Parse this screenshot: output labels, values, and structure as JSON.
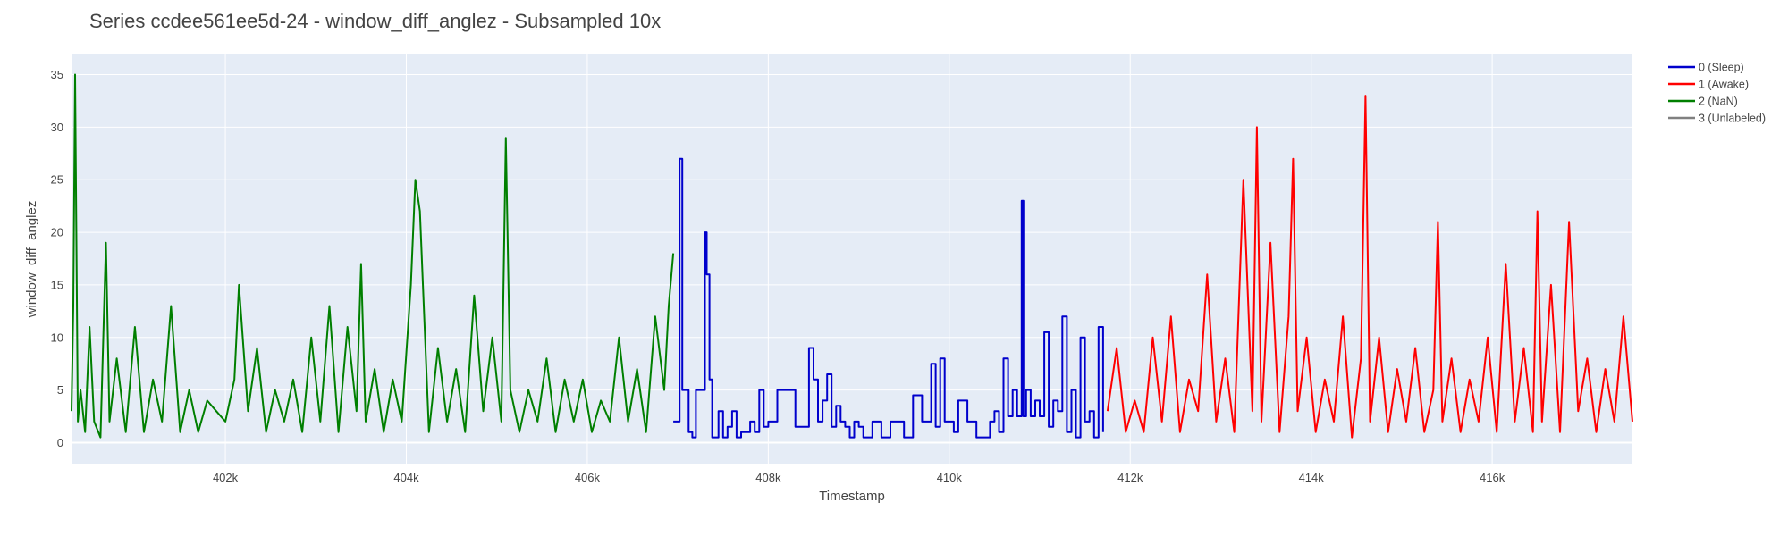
{
  "colors": {
    "plot_bg": "#e5ecf6",
    "grid": "#ffffff",
    "sleep": "#0000cc",
    "awake": "#ff0000",
    "nan": "#007f00",
    "unlabeled": "#808080"
  },
  "chart_data": {
    "type": "line",
    "title": "Series ccdee561ee5d-24 - window_diff_anglez - Subsampled 10x",
    "xlabel": "Timestamp",
    "ylabel": "window_diff_anglez",
    "xlim": [
      400300,
      417550
    ],
    "ylim": [
      -2,
      37
    ],
    "grid": true,
    "legend_position": "top-right",
    "x_ticks": [
      {
        "value": 402000,
        "label": "402k"
      },
      {
        "value": 404000,
        "label": "404k"
      },
      {
        "value": 406000,
        "label": "406k"
      },
      {
        "value": 408000,
        "label": "408k"
      },
      {
        "value": 410000,
        "label": "410k"
      },
      {
        "value": 412000,
        "label": "412k"
      },
      {
        "value": 414000,
        "label": "414k"
      },
      {
        "value": 416000,
        "label": "416k"
      }
    ],
    "y_ticks": [
      {
        "value": 0,
        "label": "0"
      },
      {
        "value": 5,
        "label": "5"
      },
      {
        "value": 10,
        "label": "10"
      },
      {
        "value": 15,
        "label": "15"
      },
      {
        "value": 20,
        "label": "20"
      },
      {
        "value": 25,
        "label": "25"
      },
      {
        "value": 30,
        "label": "30"
      },
      {
        "value": 35,
        "label": "35"
      }
    ],
    "series": [
      {
        "name": "0 (Sleep)",
        "color": "#0000cc",
        "shape": "hv",
        "x": [
          406950,
          407020,
          407050,
          407120,
          407160,
          407200,
          407250,
          407300,
          407320,
          407350,
          407380,
          407420,
          407450,
          407500,
          407550,
          407600,
          407650,
          407700,
          407800,
          407850,
          407900,
          407950,
          408000,
          408100,
          408200,
          408300,
          408450,
          408500,
          408550,
          408600,
          408650,
          408700,
          408750,
          408800,
          408850,
          408900,
          408950,
          409000,
          409050,
          409150,
          409250,
          409350,
          409500,
          409600,
          409700,
          409800,
          409850,
          409900,
          409950,
          410000,
          410050,
          410100,
          410200,
          410300,
          410450,
          410500,
          410550,
          410600,
          410650,
          410700,
          410750,
          410800,
          410820,
          410850,
          410900,
          410950,
          411000,
          411050,
          411100,
          411150,
          411200,
          411250,
          411300,
          411350,
          411400,
          411450,
          411500,
          411550,
          411600,
          411650,
          411700
        ],
        "y": [
          2,
          27,
          5,
          1,
          0.5,
          5,
          5,
          20,
          16,
          6,
          0.5,
          0.5,
          3,
          0.5,
          1.5,
          3,
          0.5,
          1,
          2,
          1,
          5,
          1.5,
          2,
          5,
          5,
          1.5,
          9,
          6,
          2,
          4,
          6.5,
          1.5,
          3.5,
          2,
          1.5,
          0.5,
          2,
          1.5,
          0.5,
          2,
          0.5,
          2,
          0.5,
          4.5,
          2,
          7.5,
          1.5,
          8,
          2,
          2,
          1,
          4,
          2,
          0.5,
          2,
          3,
          1,
          8,
          2.5,
          5,
          2.5,
          23,
          2.5,
          5,
          2.5,
          4,
          2.5,
          10.5,
          1.5,
          4,
          3,
          12,
          1,
          5,
          0.5,
          10,
          2,
          3,
          0.5,
          11,
          1
        ]
      },
      {
        "name": "1 (Awake)",
        "color": "#ff0000",
        "shape": "linear",
        "x": [
          411750,
          411850,
          411950,
          412050,
          412150,
          412250,
          412350,
          412450,
          412550,
          412650,
          412750,
          412850,
          412950,
          413050,
          413150,
          413250,
          413350,
          413400,
          413450,
          413550,
          413650,
          413750,
          413800,
          413850,
          413950,
          414050,
          414150,
          414250,
          414350,
          414450,
          414550,
          414600,
          414650,
          414750,
          414850,
          414950,
          415050,
          415150,
          415250,
          415350,
          415400,
          415450,
          415550,
          415650,
          415750,
          415850,
          415950,
          416050,
          416150,
          416250,
          416350,
          416450,
          416500,
          416550,
          416650,
          416750,
          416850,
          416950,
          417050,
          417150,
          417250,
          417350,
          417450,
          417550
        ],
        "y": [
          3,
          9,
          1,
          4,
          1,
          10,
          2,
          12,
          1,
          6,
          3,
          16,
          2,
          8,
          1,
          25,
          3,
          30,
          2,
          19,
          1,
          12,
          27,
          3,
          10,
          1,
          6,
          2,
          12,
          0.5,
          8,
          33,
          2,
          10,
          1,
          7,
          2,
          9,
          1,
          5,
          21,
          2,
          8,
          1,
          6,
          2,
          10,
          1,
          17,
          2,
          9,
          1,
          22,
          2,
          15,
          1,
          21,
          3,
          8,
          1,
          7,
          2,
          12,
          2
        ]
      },
      {
        "name": "2 (NaN)",
        "color": "#007f00",
        "shape": "linear",
        "x": [
          400300,
          400320,
          400340,
          400370,
          400400,
          400450,
          400500,
          400550,
          400620,
          400680,
          400720,
          400800,
          400900,
          401000,
          401100,
          401200,
          401300,
          401400,
          401500,
          401600,
          401700,
          401800,
          401900,
          402000,
          402100,
          402150,
          402250,
          402350,
          402450,
          402550,
          402650,
          402750,
          402850,
          402950,
          403050,
          403150,
          403250,
          403350,
          403450,
          403500,
          403550,
          403650,
          403750,
          403850,
          403950,
          404050,
          404100,
          404150,
          404250,
          404350,
          404450,
          404550,
          404650,
          404750,
          404850,
          404950,
          405050,
          405100,
          405150,
          405250,
          405350,
          405450,
          405550,
          405650,
          405750,
          405850,
          405950,
          406050,
          406150,
          406250,
          406350,
          406450,
          406550,
          406650,
          406750,
          406850,
          406900,
          406950
        ],
        "y": [
          3,
          13,
          35,
          2,
          5,
          1,
          11,
          2,
          0.5,
          19,
          2,
          8,
          1,
          11,
          1,
          6,
          2,
          13,
          1,
          5,
          1,
          4,
          3,
          2,
          6,
          15,
          3,
          9,
          1,
          5,
          2,
          6,
          1,
          10,
          2,
          13,
          1,
          11,
          3,
          17,
          2,
          7,
          1,
          6,
          2,
          15,
          25,
          22,
          1,
          9,
          2,
          7,
          1,
          14,
          3,
          10,
          2,
          29,
          5,
          1,
          5,
          2,
          8,
          1,
          6,
          2,
          6,
          1,
          4,
          2,
          10,
          2,
          7,
          1,
          12,
          5,
          13,
          18
        ]
      },
      {
        "name": "3 (Unlabeled)",
        "color": "#808080",
        "shape": "linear",
        "x": [],
        "y": []
      }
    ]
  }
}
